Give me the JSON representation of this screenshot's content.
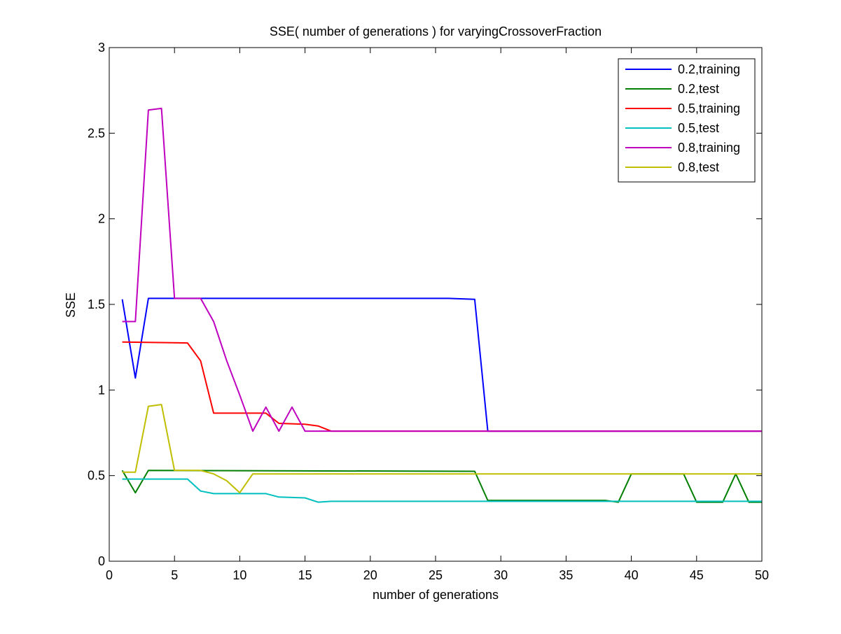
{
  "chart_data": {
    "type": "line",
    "title": "SSE( number of generations ) for varyingCrossoverFraction",
    "xlabel": "number of generations",
    "ylabel": "SSE",
    "xlim": [
      0,
      50
    ],
    "ylim": [
      0,
      3
    ],
    "x_ticks": [
      0,
      5,
      10,
      15,
      20,
      25,
      30,
      35,
      40,
      45,
      50
    ],
    "y_ticks": [
      0,
      0.5,
      1,
      1.5,
      2,
      2.5,
      3
    ],
    "x_tick_labels": [
      "0",
      "5",
      "10",
      "15",
      "20",
      "25",
      "30",
      "35",
      "40",
      "45",
      "50"
    ],
    "y_tick_labels": [
      "0",
      "0.5",
      "1",
      "1.5",
      "2",
      "2.5",
      "3"
    ],
    "grid": false,
    "legend_position": "top-right",
    "series": [
      {
        "name": "0.2,training",
        "color": "#0000ff",
        "points": [
          [
            1,
            1.53
          ],
          [
            2,
            1.07
          ],
          [
            3,
            1.535
          ],
          [
            26,
            1.535
          ],
          [
            28,
            1.53
          ],
          [
            29,
            0.76
          ],
          [
            50,
            0.76
          ]
        ]
      },
      {
        "name": "0.2,test",
        "color": "#007f00",
        "points": [
          [
            1,
            0.53
          ],
          [
            2,
            0.4
          ],
          [
            3,
            0.53
          ],
          [
            28,
            0.525
          ],
          [
            29,
            0.355
          ],
          [
            38,
            0.355
          ],
          [
            39,
            0.345
          ],
          [
            40,
            0.51
          ],
          [
            44,
            0.51
          ],
          [
            45,
            0.345
          ],
          [
            47,
            0.345
          ],
          [
            48,
            0.51
          ],
          [
            49,
            0.345
          ],
          [
            50,
            0.345
          ]
        ]
      },
      {
        "name": "0.5,training",
        "color": "#ff0000",
        "points": [
          [
            1,
            1.28
          ],
          [
            6,
            1.275
          ],
          [
            7,
            1.17
          ],
          [
            8,
            0.865
          ],
          [
            12,
            0.865
          ],
          [
            13,
            0.805
          ],
          [
            15,
            0.8
          ],
          [
            16,
            0.79
          ],
          [
            17,
            0.76
          ],
          [
            50,
            0.76
          ]
        ]
      },
      {
        "name": "0.5,test",
        "color": "#00bfbf",
        "points": [
          [
            1,
            0.48
          ],
          [
            6,
            0.48
          ],
          [
            7,
            0.41
          ],
          [
            8,
            0.395
          ],
          [
            12,
            0.395
          ],
          [
            13,
            0.375
          ],
          [
            15,
            0.37
          ],
          [
            16,
            0.345
          ],
          [
            17,
            0.35
          ],
          [
            50,
            0.35
          ]
        ]
      },
      {
        "name": "0.8,training",
        "color": "#bf00bf",
        "points": [
          [
            1,
            1.4
          ],
          [
            2,
            1.4
          ],
          [
            3,
            2.635
          ],
          [
            4,
            2.645
          ],
          [
            5,
            1.535
          ],
          [
            7,
            1.535
          ],
          [
            8,
            1.4
          ],
          [
            9,
            1.17
          ],
          [
            10,
            0.97
          ],
          [
            11,
            0.76
          ],
          [
            12,
            0.9
          ],
          [
            13,
            0.76
          ],
          [
            14,
            0.9
          ],
          [
            15,
            0.76
          ],
          [
            50,
            0.76
          ]
        ]
      },
      {
        "name": "0.8,test",
        "color": "#bfbf00",
        "points": [
          [
            1,
            0.52
          ],
          [
            2,
            0.52
          ],
          [
            3,
            0.905
          ],
          [
            4,
            0.915
          ],
          [
            5,
            0.53
          ],
          [
            7,
            0.53
          ],
          [
            8,
            0.51
          ],
          [
            9,
            0.47
          ],
          [
            10,
            0.4
          ],
          [
            11,
            0.51
          ],
          [
            50,
            0.51
          ]
        ]
      }
    ]
  }
}
